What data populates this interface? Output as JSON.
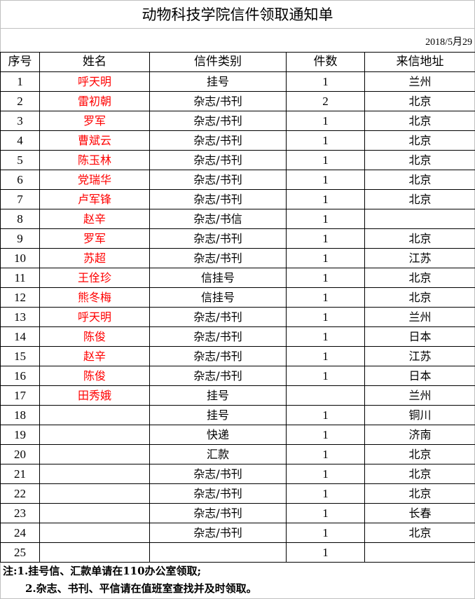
{
  "title": "动物科技学院信件领取通知单",
  "date": "2018/5月29",
  "headers": [
    "序号",
    "姓名",
    "信件类别",
    "件数",
    "来信地址"
  ],
  "rows": [
    [
      "1",
      "呼天明",
      "挂号",
      "1",
      "兰州"
    ],
    [
      "2",
      "雷初朝",
      "杂志/书刊",
      "2",
      "北京"
    ],
    [
      "3",
      "罗军",
      "杂志/书刊",
      "1",
      "北京"
    ],
    [
      "4",
      "曹斌云",
      "杂志/书刊",
      "1",
      "北京"
    ],
    [
      "5",
      "陈玉林",
      "杂志/书刊",
      "1",
      "北京"
    ],
    [
      "6",
      "党瑞华",
      "杂志/书刊",
      "1",
      "北京"
    ],
    [
      "7",
      "卢军锋",
      "杂志/书刊",
      "1",
      "北京"
    ],
    [
      "8",
      "赵辛",
      "杂志/书信",
      "1",
      ""
    ],
    [
      "9",
      "罗军",
      "杂志/书刊",
      "1",
      "北京"
    ],
    [
      "10",
      "苏超",
      "杂志/书刊",
      "1",
      "江苏"
    ],
    [
      "11",
      "王佺珍",
      "信挂号",
      "1",
      "北京"
    ],
    [
      "12",
      "熊冬梅",
      "信挂号",
      "1",
      "北京"
    ],
    [
      "13",
      "呼天明",
      "杂志/书刊",
      "1",
      "兰州"
    ],
    [
      "14",
      "陈俊",
      "杂志/书刊",
      "1",
      "日本"
    ],
    [
      "15",
      "赵辛",
      "杂志/书刊",
      "1",
      "江苏"
    ],
    [
      "16",
      "陈俊",
      "杂志/书刊",
      "1",
      "日本"
    ],
    [
      "17",
      "田秀娥",
      "挂号",
      "",
      "兰州"
    ],
    [
      "18",
      "",
      "挂号",
      "1",
      "铜川"
    ],
    [
      "19",
      "",
      "快递",
      "1",
      "济南"
    ],
    [
      "20",
      "",
      "汇款",
      "1",
      "北京"
    ],
    [
      "21",
      "",
      "杂志/书刊",
      "1",
      "北京"
    ],
    [
      "22",
      "",
      "杂志/书刊",
      "1",
      "北京"
    ],
    [
      "23",
      "",
      "杂志/书刊",
      "1",
      "长春"
    ],
    [
      "24",
      "",
      "杂志/书刊",
      "1",
      "北京"
    ],
    [
      "25",
      "",
      "",
      "1",
      ""
    ]
  ],
  "notes": [
    "注:1.挂号信、汇款单请在110办公室领取;",
    "2.杂志、书刊、平信请在值班室查找并及时领取。"
  ],
  "colors": {
    "name_text": "#ff0000",
    "grid": "#000000",
    "outer_border": "#c0c0c0"
  }
}
